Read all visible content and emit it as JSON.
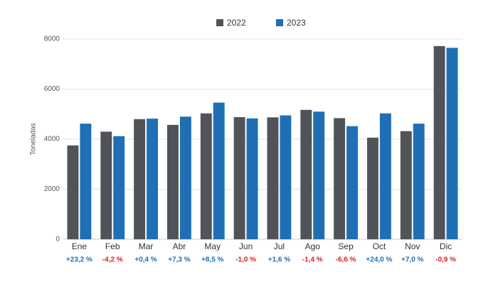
{
  "chart_data": {
    "type": "bar",
    "y_label": "Toneladas",
    "categories": [
      "Ene",
      "Feb",
      "Mar",
      "Abr",
      "May",
      "Jun",
      "Jul",
      "Ago",
      "Sep",
      "Oct",
      "Nov",
      "Dic"
    ],
    "series": [
      {
        "name": "2022",
        "color": "#505459",
        "values": [
          3750,
          4300,
          4800,
          4570,
          5030,
          4880,
          4870,
          5170,
          4840,
          4060,
          4320,
          7720
        ]
      },
      {
        "name": "2023",
        "color": "#1f6fb5",
        "values": [
          4620,
          4120,
          4820,
          4900,
          5460,
          4830,
          4950,
          5100,
          4520,
          5030,
          4620,
          7650
        ]
      }
    ],
    "changes": {
      "values": [
        23.2,
        -4.2,
        0.4,
        7.3,
        8.5,
        -1.0,
        1.6,
        -1.4,
        -6.6,
        24.0,
        7.0,
        -0.9
      ],
      "value_labels": [
        "+23,2 %",
        "-4,2 %",
        "+0,4 %",
        "+7,3 %",
        "+8,5 %",
        "-1,0 %",
        "+1,6 %",
        "-1,4 %",
        "-6,6 %",
        "+24,0 %",
        "+7,0 %",
        "-0,9 %"
      ],
      "positive_color": "#1f6fb5",
      "negative_color": "#e02020"
    },
    "ylim": [
      0,
      8000
    ],
    "yticks": [
      0,
      2000,
      4000,
      6000,
      8000
    ],
    "grid": true
  }
}
